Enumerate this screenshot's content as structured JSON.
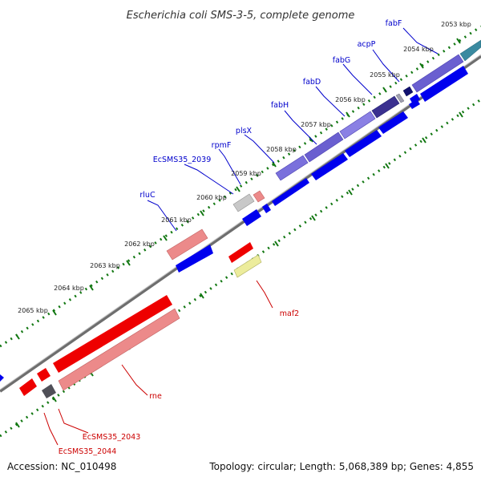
{
  "title": "Escherichia coli SMS-3-5, complete genome",
  "footer": {
    "accession": "Accession: NC_010498",
    "topology": "Topology: circular; Length: 5,068,389 bp; Genes: 4,855"
  },
  "ticks": [
    "2053 kbp",
    "2054 kbp",
    "2055 kbp",
    "2056 kbp",
    "2057 kbp",
    "2058 kbp",
    "2059 kbp",
    "2060 kbp",
    "2061 kbp",
    "2062 kbp",
    "2063 kbp",
    "2064 kbp",
    "2065 kbp"
  ],
  "genes_forward": [
    "fabF",
    "acpP",
    "fabG",
    "fabD",
    "fabH",
    "plsX",
    "rpmF",
    "EcSMS35_2039",
    "rluC"
  ],
  "genes_reverse": [
    "maf2",
    "rne",
    "EcSMS35_2043",
    "EcSMS35_2044"
  ],
  "colors": {
    "forward_label": "#0000cc",
    "reverse_label": "#cc0000",
    "purple": "#6a5fd0",
    "navy": "#202080",
    "blue": "#0000ee",
    "red": "#ee0000",
    "pink": "#ec8a8a",
    "grey": "#b8b8b8",
    "dark_grey": "#505058",
    "yellow": "#ecec9c",
    "teal": "#3a8aa0",
    "tick_green": "#117711",
    "backbone": "#808080"
  }
}
